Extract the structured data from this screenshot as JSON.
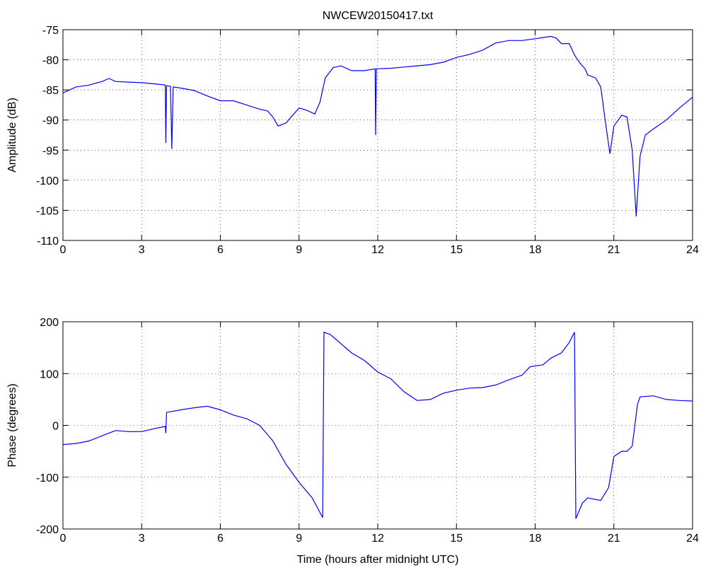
{
  "chart_data": [
    {
      "type": "line",
      "title": "NWCEW20150417.txt",
      "ylabel": "Amplitude (dB)",
      "x": [
        0,
        0.5,
        1,
        1.5,
        1.75,
        2,
        2.5,
        3,
        3.5,
        3.9,
        3.92,
        3.95,
        4.1,
        4.15,
        4.2,
        4.5,
        5,
        5.5,
        6,
        6.5,
        7,
        7.5,
        7.8,
        8,
        8.2,
        8.5,
        8.8,
        9,
        9.3,
        9.6,
        9.8,
        10,
        10.3,
        10.6,
        11,
        11.5,
        11.9,
        11.92,
        11.95,
        12.5,
        13,
        13.5,
        14,
        14.5,
        15,
        15.5,
        16,
        16.5,
        17,
        17.5,
        18,
        18.3,
        18.6,
        18.8,
        19,
        19.3,
        19.5,
        19.7,
        19.9,
        20,
        20.3,
        20.5,
        20.7,
        20.85,
        21,
        21.3,
        21.5,
        21.7,
        21.85,
        22,
        22.2,
        22.5,
        23,
        23.5,
        24
      ],
      "values": [
        -85.5,
        -84.5,
        -84.2,
        -83.6,
        -83.1,
        -83.6,
        -83.7,
        -83.8,
        -84,
        -84.2,
        -93.8,
        -84.3,
        -84.4,
        -94.8,
        -84.5,
        -84.7,
        -85.1,
        -86,
        -86.8,
        -86.8,
        -87.5,
        -88.2,
        -88.5,
        -89.5,
        -91,
        -90.5,
        -89,
        -88,
        -88.4,
        -89,
        -87,
        -83,
        -81.3,
        -81,
        -81.8,
        -81.8,
        -81.5,
        -92.5,
        -81.5,
        -81.4,
        -81.2,
        -81,
        -80.8,
        -80.4,
        -79.6,
        -79.1,
        -78.4,
        -77.2,
        -76.8,
        -76.8,
        -76.5,
        -76.3,
        -76.1,
        -76.4,
        -77.3,
        -77.3,
        -79.2,
        -80.5,
        -81.5,
        -82.5,
        -83,
        -84.5,
        -91,
        -95.6,
        -91,
        -89.2,
        -89.5,
        -95,
        -106,
        -96,
        -92.5,
        -91.5,
        -90,
        -88,
        -86.2
      ],
      "color": "#0000ff",
      "xlim": [
        0,
        24
      ],
      "xticks": [
        0,
        3,
        6,
        9,
        12,
        15,
        18,
        21,
        24
      ],
      "ylim": [
        -110,
        -75
      ],
      "yticks": [
        -110,
        -105,
        -100,
        -95,
        -90,
        -85,
        -80,
        -75
      ],
      "grid": true
    },
    {
      "type": "line",
      "ylabel": "Phase (degrees)",
      "xlabel": "Time (hours after midnight UTC)",
      "x": [
        0,
        0.5,
        1,
        1.5,
        2,
        2.5,
        3,
        3.5,
        3.9,
        3.92,
        3.95,
        4.5,
        5,
        5.5,
        6,
        6.5,
        7,
        7.5,
        8,
        8.5,
        9,
        9.5,
        9.9,
        9.95,
        10.2,
        11,
        11.5,
        12,
        12.5,
        13,
        13.5,
        14,
        14.5,
        15,
        15.5,
        16,
        16.5,
        17,
        17.5,
        17.8,
        18.3,
        18.6,
        19,
        19.3,
        19.5,
        19.55,
        19.8,
        20,
        20.5,
        20.8,
        21,
        21.3,
        21.5,
        21.7,
        21.9,
        22,
        22.5,
        23,
        23.5,
        24
      ],
      "values": [
        -37,
        -35,
        -30,
        -20,
        -10,
        -12,
        -12,
        -6,
        -2,
        -15,
        25,
        30,
        34,
        37,
        30,
        20,
        13,
        0,
        -30,
        -75,
        -110,
        -140,
        -178,
        180,
        175,
        140,
        125,
        103,
        90,
        65,
        48,
        50,
        62,
        68,
        72,
        73,
        78,
        88,
        97,
        113,
        117,
        130,
        140,
        160,
        180,
        -180,
        -150,
        -140,
        -145,
        -120,
        -60,
        -50,
        -50,
        -40,
        40,
        55,
        57,
        50,
        48,
        47
      ],
      "color": "#0000ff",
      "xlim": [
        0,
        24
      ],
      "xticks": [
        0,
        3,
        6,
        9,
        12,
        15,
        18,
        21,
        24
      ],
      "ylim": [
        -200,
        200
      ],
      "yticks": [
        -200,
        -100,
        0,
        100,
        200
      ],
      "grid": true
    }
  ]
}
